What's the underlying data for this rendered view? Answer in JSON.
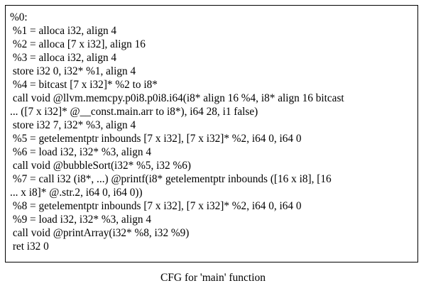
{
  "graph": {
    "caption": "CFG for 'main' function"
  },
  "node": {
    "lines": [
      "%0:",
      " %1 = alloca i32, align 4",
      " %2 = alloca [7 x i32], align 16",
      " %3 = alloca i32, align 4",
      " store i32 0, i32* %1, align 4",
      " %4 = bitcast [7 x i32]* %2 to i8*",
      " call void @llvm.memcpy.p0i8.p0i8.i64(i8* align 16 %4, i8* align 16 bitcast",
      "... ([7 x i32]* @__const.main.arr to i8*), i64 28, i1 false)",
      " store i32 7, i32* %3, align 4",
      " %5 = getelementptr inbounds [7 x i32], [7 x i32]* %2, i64 0, i64 0",
      " %6 = load i32, i32* %3, align 4",
      " call void @bubbleSort(i32* %5, i32 %6)",
      " %7 = call i32 (i8*, ...) @printf(i8* getelementptr inbounds ([16 x i8], [16",
      "... x i8]* @.str.2, i64 0, i64 0))",
      " %8 = getelementptr inbounds [7 x i32], [7 x i32]* %2, i64 0, i64 0",
      " %9 = load i32, i32* %3, align 4",
      " call void @printArray(i32* %8, i32 %9)",
      " ret i32 0"
    ]
  }
}
